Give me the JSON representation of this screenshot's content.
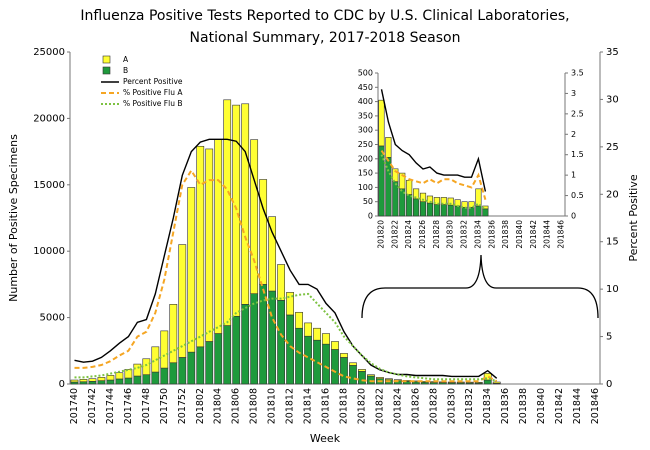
{
  "chart_data": [
    {
      "type": "bar",
      "title": [
        "Influenza Positive Tests Reported to CDC by U.S. Clinical Laboratories,",
        "National Summary, 2017-2018 Season"
      ],
      "xlabel": "Week",
      "ylabel": "Number of Positive Specimens",
      "y2label": "Percent Positive",
      "legend": "upper left",
      "categories": [
        "201740",
        null,
        "201742",
        null,
        "201744",
        null,
        "201746",
        null,
        "201748",
        null,
        "201750",
        null,
        "201752",
        null,
        "201802",
        null,
        "201804",
        null,
        "201806",
        null,
        "201808",
        null,
        "201810",
        null,
        "201812",
        null,
        "201814",
        null,
        "201816",
        null,
        "201818",
        null,
        "201820",
        null,
        "201822",
        null,
        "201824",
        null,
        "201826",
        null,
        "201828",
        null,
        "201830",
        null,
        "201832",
        null,
        "201834",
        null,
        "201836",
        null,
        "201838",
        null,
        "201840",
        null,
        "201842",
        null,
        "201844",
        null,
        "201846"
      ],
      "ylim": [
        0,
        25000
      ],
      "yticks": [
        0,
        5000,
        10000,
        15000,
        20000,
        25000
      ],
      "y2lim": [
        0,
        35
      ],
      "y2ticks": [
        0,
        5,
        10,
        15,
        20,
        25,
        30,
        35
      ],
      "series": [
        {
          "name": "A",
          "type": "bar",
          "color": "#ffff33",
          "values": [
            150,
            180,
            200,
            250,
            350,
            470,
            650,
            900,
            1200,
            1900,
            2800,
            4400,
            8500,
            12400,
            15100,
            14500,
            14600,
            17000,
            15900,
            15100,
            11600,
            7900,
            5600,
            2700,
            1700,
            1200,
            1000,
            900,
            800,
            600,
            300,
            200,
            150,
            100,
            100,
            80,
            80,
            70,
            70,
            70,
            70,
            60,
            60,
            65,
            60,
            60,
            500,
            100,
            null,
            null,
            null,
            null,
            null,
            null,
            null,
            null,
            null,
            null,
            null
          ]
        },
        {
          "name": "B",
          "type": "bar",
          "color": "#1e9a3c",
          "values": [
            150,
            170,
            200,
            250,
            300,
            380,
            450,
            600,
            700,
            900,
            1200,
            1600,
            2000,
            2400,
            2800,
            3200,
            3800,
            4400,
            5100,
            6000,
            6800,
            7500,
            7000,
            6300,
            5200,
            4200,
            3600,
            3300,
            3000,
            2600,
            2000,
            1400,
            950,
            600,
            400,
            320,
            250,
            200,
            160,
            130,
            110,
            100,
            90,
            85,
            80,
            70,
            300,
            50,
            null,
            null,
            null,
            null,
            null,
            null,
            null,
            null,
            null,
            null,
            null
          ]
        },
        {
          "name": "Percent Positive",
          "type": "line",
          "axis": "y2",
          "color": "#000000",
          "dash": "solid",
          "values": [
            2.5,
            2.3,
            2.4,
            2.8,
            3.5,
            4.3,
            5.0,
            6.5,
            6.8,
            9.5,
            13.5,
            17.5,
            22,
            24.5,
            25.5,
            25.8,
            25.8,
            25.8,
            25.6,
            24.5,
            21.5,
            18.5,
            16,
            14,
            12,
            10.5,
            10.5,
            10,
            8.5,
            7.5,
            5.5,
            4.0,
            3.0,
            2.0,
            1.5,
            1.2,
            1.0,
            1.0,
            0.9,
            0.9,
            0.9,
            0.9,
            0.8,
            0.8,
            0.8,
            0.8,
            1.4,
            0.6,
            null,
            null,
            null,
            null,
            null,
            null,
            null,
            null,
            null,
            null,
            null
          ]
        },
        {
          "name": "% Positive Flu A",
          "type": "line",
          "axis": "y2",
          "color": "#f5a623",
          "dash": "dashed",
          "values": [
            1.7,
            1.7,
            1.8,
            2.0,
            2.4,
            3.0,
            3.5,
            5.0,
            5.5,
            7.5,
            11,
            16,
            21,
            22.5,
            21,
            21.5,
            21.5,
            20.5,
            18.5,
            15.5,
            13,
            10,
            7,
            5.2,
            4.0,
            3.3,
            2.8,
            2.3,
            1.8,
            1.3,
            0.8,
            0.6,
            0.4,
            0.3,
            0.3,
            0.3,
            0.3,
            0.3,
            0.3,
            0.3,
            0.3,
            0.3,
            0.3,
            0.3,
            0.3,
            0.3,
            0.8,
            0.3,
            null,
            null,
            null,
            null,
            null,
            null,
            null,
            null,
            null,
            null,
            null
          ]
        },
        {
          "name": "% Positive Flu B",
          "type": "line",
          "axis": "y2",
          "color": "#7dc242",
          "dash": "dotted",
          "values": [
            0.7,
            0.7,
            0.8,
            0.9,
            1.1,
            1.3,
            1.5,
            1.7,
            2.0,
            2.5,
            3.0,
            3.5,
            4.0,
            4.5,
            5.0,
            5.5,
            6.0,
            6.5,
            7.5,
            8.0,
            8.5,
            8.8,
            9.0,
            9.0,
            9.2,
            9.4,
            9.5,
            8.5,
            7.5,
            6.5,
            5.0,
            4.0,
            3.0,
            2.2,
            1.6,
            1.2,
            1.0,
            0.8,
            0.7,
            0.6,
            0.5,
            0.5,
            0.5,
            0.5,
            0.5,
            0.5,
            0.6,
            0.3,
            null,
            null,
            null,
            null,
            null,
            null,
            null,
            null,
            null,
            null,
            null
          ]
        }
      ]
    },
    {
      "type": "bar",
      "categories": [
        "201820",
        null,
        "201822",
        null,
        "201824",
        null,
        "201826",
        null,
        "201828",
        null,
        "201830",
        null,
        "201832",
        null,
        "201834",
        null,
        "201836",
        null,
        "201838",
        null,
        "201840",
        null,
        "201842",
        null,
        "201844",
        null,
        "201846"
      ],
      "ylim": [
        0,
        500
      ],
      "yticks": [
        0,
        50,
        100,
        150,
        200,
        250,
        300,
        350,
        400,
        450,
        500
      ],
      "y2lim": [
        0,
        3.5
      ],
      "y2ticks": [
        0,
        0.5,
        1,
        1.5,
        2,
        2.5,
        3,
        3.5
      ],
      "series": [
        {
          "type": "bar",
          "color": "#ffff33",
          "values": [
            160,
            70,
            45,
            55,
            50,
            35,
            30,
            25,
            25,
            25,
            25,
            22,
            20,
            20,
            60,
            10,
            null,
            null,
            null,
            null,
            null,
            null,
            null,
            null,
            null,
            null,
            null
          ]
        },
        {
          "type": "bar",
          "color": "#1e9a3c",
          "values": [
            245,
            205,
            120,
            95,
            75,
            60,
            50,
            45,
            40,
            40,
            38,
            35,
            30,
            30,
            35,
            25,
            null,
            null,
            null,
            null,
            null,
            null,
            null,
            null,
            null,
            null,
            null
          ]
        },
        {
          "type": "line",
          "axis": "y2",
          "color": "#000000",
          "dash": "solid",
          "values": [
            3.1,
            2.3,
            1.75,
            1.6,
            1.5,
            1.3,
            1.15,
            1.2,
            1.05,
            1.0,
            1.0,
            1.0,
            0.95,
            0.95,
            1.4,
            0.6,
            null,
            null,
            null,
            null,
            null,
            null,
            null,
            null,
            null,
            null,
            null
          ]
        },
        {
          "type": "line",
          "axis": "y2",
          "color": "#f5a623",
          "dash": "dashed",
          "values": [
            1.6,
            1.35,
            1.1,
            1.0,
            0.9,
            0.85,
            0.8,
            0.9,
            0.8,
            0.9,
            0.9,
            0.8,
            0.75,
            0.7,
            1.0,
            0.4,
            null,
            null,
            null,
            null,
            null,
            null,
            null,
            null,
            null,
            null,
            null
          ]
        },
        {
          "type": "line",
          "axis": "y2",
          "color": "#7dc242",
          "dash": "dotted",
          "values": [
            1.5,
            1.1,
            0.8,
            0.6,
            0.5,
            0.45,
            0.4,
            0.35,
            0.3,
            0.3,
            0.3,
            0.25,
            0.2,
            0.2,
            0.3,
            0.15,
            null,
            null,
            null,
            null,
            null,
            null,
            null,
            null,
            null,
            null,
            null
          ]
        }
      ]
    }
  ]
}
